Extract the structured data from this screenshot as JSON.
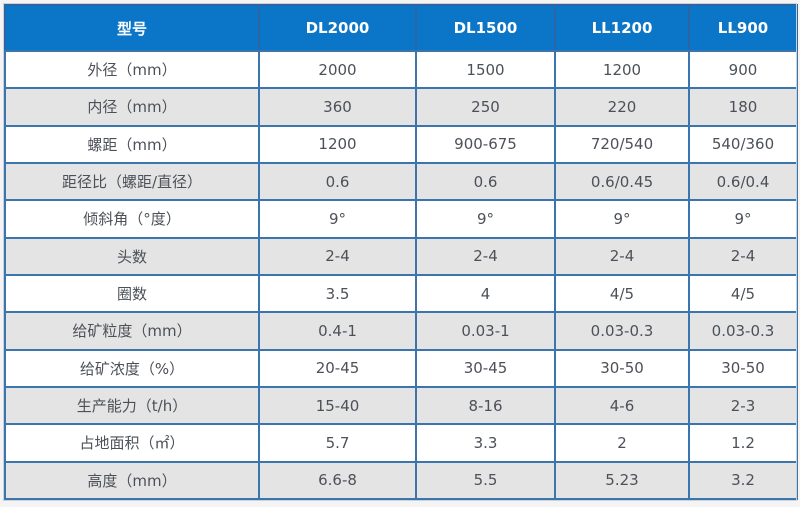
{
  "table": {
    "header": {
      "label": "型号",
      "models": [
        "DL2000",
        "DL1500",
        "LL1200",
        "LL900"
      ]
    },
    "rows": [
      {
        "label": "外径（mm）",
        "values": [
          "2000",
          "1500",
          "1200",
          "900"
        ]
      },
      {
        "label": "内径（mm）",
        "values": [
          "360",
          "250",
          "220",
          "180"
        ]
      },
      {
        "label": "螺距（mm）",
        "values": [
          "1200",
          "900-675",
          "720/540",
          "540/360"
        ]
      },
      {
        "label": "距径比（螺距/直径）",
        "values": [
          "0.6",
          "0.6",
          "0.6/0.45",
          "0.6/0.4"
        ]
      },
      {
        "label": "倾斜角（°度）",
        "values": [
          "9°",
          "9°",
          "9°",
          "9°"
        ]
      },
      {
        "label": "头数",
        "values": [
          "2-4",
          "2-4",
          "2-4",
          "2-4"
        ]
      },
      {
        "label": "圈数",
        "values": [
          "3.5",
          "4",
          "4/5",
          "4/5"
        ]
      },
      {
        "label": "给矿粒度（mm）",
        "values": [
          "0.4-1",
          "0.03-1",
          "0.03-0.3",
          "0.03-0.3"
        ]
      },
      {
        "label": "给矿浓度（%）",
        "values": [
          "20-45",
          "30-45",
          "30-50",
          "30-50"
        ]
      },
      {
        "label": "生产能力（t/h）",
        "values": [
          "15-40",
          "8-16",
          "4-6",
          "2-3"
        ]
      },
      {
        "label": "占地面积（㎡）",
        "values": [
          "5.7",
          "3.3",
          "2",
          "1.2"
        ]
      },
      {
        "label": "高度（mm）",
        "values": [
          "6.6-8",
          "5.5",
          "5.23",
          "3.2"
        ]
      }
    ],
    "colors": {
      "header_bg": "#0b76c8",
      "header_text": "#ffffff",
      "cell_border": "#3a76ad",
      "stripe_gray": "#e4e4e4",
      "row_white": "#ffffff",
      "page_bg": "#f4f4f5",
      "body_text": "#4c5158"
    }
  }
}
